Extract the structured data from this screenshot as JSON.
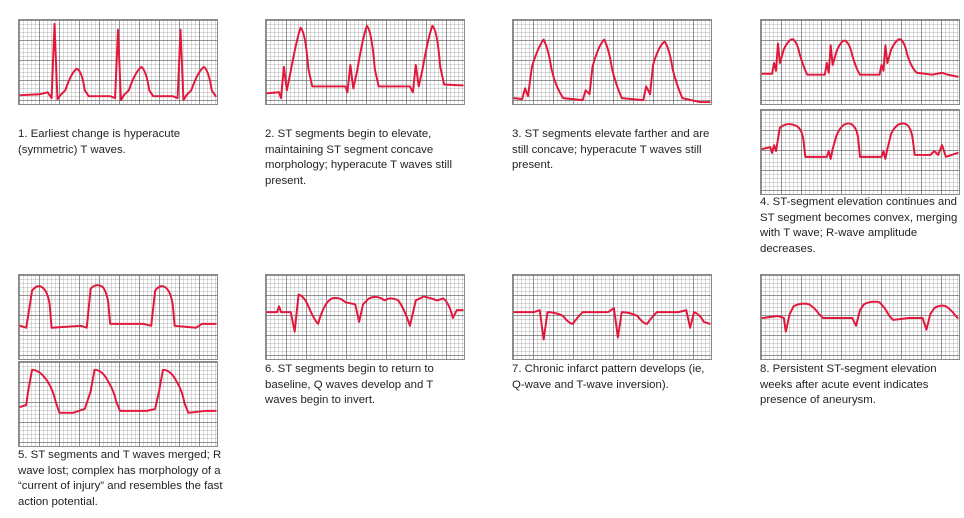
{
  "panels": [
    {
      "caption": "1. Earliest change is hyperacute (symmetric) T waves."
    },
    {
      "caption": "2. ST segments begin to elevate, maintaining ST segment concave morphology; hyperacute T waves still present."
    },
    {
      "caption": "3. ST segments elevate farther and are still concave; hyperacute T waves still present."
    },
    {
      "caption": "4. ST-segment elevation continues and ST segment becomes convex, merging with T wave; R-wave amplitude decreases."
    },
    {
      "caption": "5. ST segments and T waves merged; R wave lost; complex has morphology of a “current of injury” and resembles the fast action potential."
    },
    {
      "caption": "6. ST segments begin to return to baseline, Q waves develop and T waves begin to invert."
    },
    {
      "caption": "7. Chronic infarct pattern develops (ie, Q-wave and T-wave inversion)."
    },
    {
      "caption": "8. Persistent ST-segment elevation weeks after acute event indicates presence of aneurysm."
    }
  ],
  "colors": {
    "trace": "#e2173b",
    "grid": "#8a8a8a"
  }
}
